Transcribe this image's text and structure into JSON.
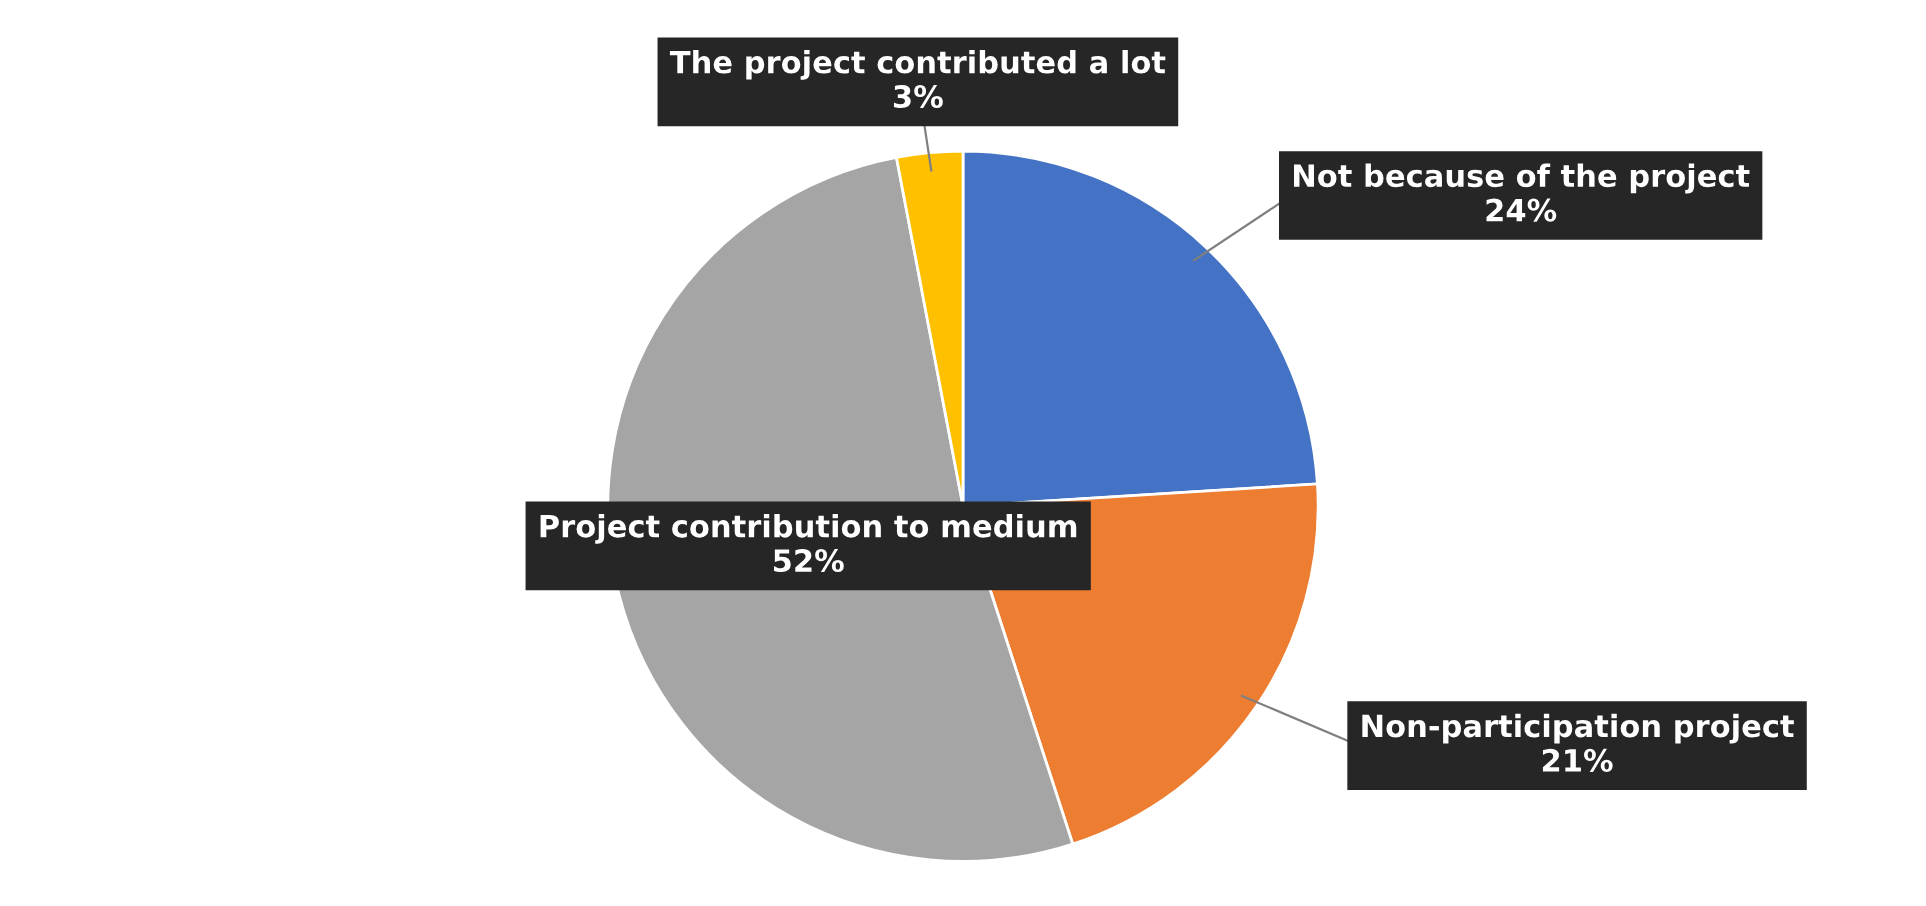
{
  "chart_data": {
    "type": "pie",
    "categories": [
      "Not because of the project",
      "Non-participation project",
      "Project contribution to medium",
      "The project contributed a lot"
    ],
    "values": [
      24,
      21,
      52,
      3
    ],
    "colors": [
      "#4472c4",
      "#ed7d31",
      "#a5a5a5",
      "#ffc000"
    ],
    "value_labels": [
      "24%",
      "21%",
      "52%",
      "3%"
    ],
    "legend": false
  }
}
